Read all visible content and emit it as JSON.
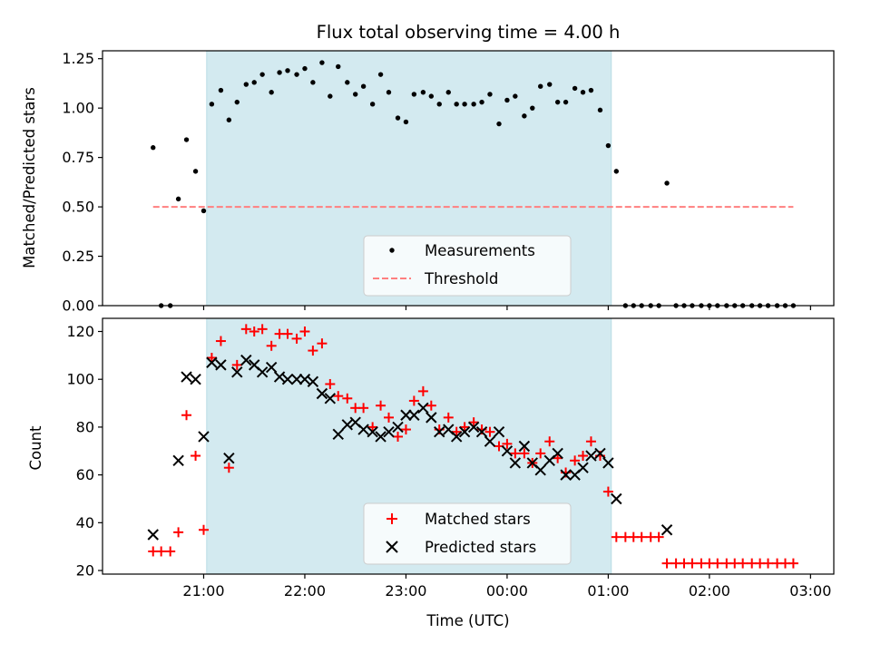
{
  "chart_data": [
    {
      "type": "scatter",
      "title": "Flux total observing time = 4.00 h",
      "ylabel": "Matched/Predicted stars",
      "xlabel": "",
      "xlim": [
        20.0,
        27.23
      ],
      "ylim": [
        0.0,
        1.29
      ],
      "yticks": [
        0.0,
        0.25,
        0.5,
        0.75,
        1.0,
        1.25
      ],
      "ytick_labels": [
        "0.00",
        "0.25",
        "0.50",
        "0.75",
        "1.00",
        "1.25"
      ],
      "shaded_region_x": [
        21.03,
        25.03
      ],
      "shaded_color": "#d3eaf0",
      "threshold": {
        "name": "Threshold",
        "value": 0.5,
        "x": [
          20.5,
          26.83
        ],
        "color": "#ff7f7f"
      },
      "series": [
        {
          "name": "Measurements",
          "color": "#000000",
          "marker": "dot",
          "x": [
            20.5,
            20.58,
            20.67,
            20.75,
            20.83,
            20.92,
            21.0,
            21.08,
            21.17,
            21.25,
            21.33,
            21.42,
            21.5,
            21.58,
            21.67,
            21.75,
            21.83,
            21.92,
            22.0,
            22.08,
            22.17,
            22.25,
            22.33,
            22.42,
            22.5,
            22.58,
            22.67,
            22.75,
            22.83,
            22.92,
            23.0,
            23.08,
            23.17,
            23.25,
            23.33,
            23.42,
            23.5,
            23.58,
            23.67,
            23.75,
            23.83,
            23.92,
            24.0,
            24.08,
            24.17,
            24.25,
            24.33,
            24.42,
            24.5,
            24.58,
            24.67,
            24.75,
            24.83,
            24.92,
            25.0,
            25.08,
            25.17,
            25.25,
            25.33,
            25.42,
            25.5,
            25.58,
            25.67,
            25.75,
            25.83,
            25.92,
            26.0,
            26.08,
            26.17,
            26.25,
            26.33,
            26.42,
            26.5,
            26.58,
            26.67,
            26.75,
            26.83
          ],
          "y": [
            0.8,
            0.0,
            0.0,
            0.54,
            0.84,
            0.68,
            0.48,
            1.02,
            1.09,
            0.94,
            1.03,
            1.12,
            1.13,
            1.17,
            1.08,
            1.18,
            1.19,
            1.17,
            1.2,
            1.13,
            1.23,
            1.06,
            1.21,
            1.13,
            1.07,
            1.11,
            1.02,
            1.17,
            1.08,
            0.95,
            0.93,
            1.07,
            1.08,
            1.06,
            1.02,
            1.08,
            1.02,
            1.02,
            1.02,
            1.03,
            1.07,
            0.92,
            1.04,
            1.06,
            0.96,
            1.0,
            1.11,
            1.12,
            1.03,
            1.03,
            1.1,
            1.08,
            1.09,
            0.99,
            0.81,
            0.68,
            0.0,
            0.0,
            0.0,
            0.0,
            0.0,
            0.62,
            0.0,
            0.0,
            0.0,
            0.0,
            0.0,
            0.0,
            0.0,
            0.0,
            0.0,
            0.0,
            0.0,
            0.0,
            0.0,
            0.0,
            0.0
          ]
        }
      ],
      "legend": {
        "position": "bottom-center",
        "entries": [
          "Measurements",
          "Threshold"
        ]
      }
    },
    {
      "type": "scatter",
      "title": "",
      "ylabel": "Count",
      "xlabel": "Time (UTC)",
      "xlim": [
        20.0,
        27.23
      ],
      "ylim": [
        18.5,
        125.5
      ],
      "yticks": [
        20,
        40,
        60,
        80,
        100,
        120
      ],
      "ytick_labels": [
        "20",
        "40",
        "60",
        "80",
        "100",
        "120"
      ],
      "xticks": [
        21,
        22,
        23,
        24,
        25,
        26,
        27
      ],
      "xtick_labels": [
        "21:00",
        "22:00",
        "23:00",
        "00:00",
        "01:00",
        "02:00",
        "03:00"
      ],
      "shaded_region_x": [
        21.03,
        25.03
      ],
      "series": [
        {
          "name": "Matched stars",
          "color": "#ff0000",
          "marker": "plus",
          "x": [
            20.5,
            20.58,
            20.67,
            20.75,
            20.83,
            20.92,
            21.0,
            21.08,
            21.17,
            21.25,
            21.33,
            21.42,
            21.5,
            21.58,
            21.67,
            21.75,
            21.83,
            21.92,
            22.0,
            22.08,
            22.17,
            22.25,
            22.33,
            22.42,
            22.5,
            22.58,
            22.67,
            22.75,
            22.83,
            22.92,
            23.0,
            23.08,
            23.17,
            23.25,
            23.33,
            23.42,
            23.5,
            23.58,
            23.67,
            23.75,
            23.83,
            23.92,
            24.0,
            24.08,
            24.17,
            24.25,
            24.33,
            24.42,
            24.5,
            24.58,
            24.67,
            24.75,
            24.83,
            24.92,
            25.0,
            25.08,
            25.17,
            25.25,
            25.33,
            25.42,
            25.5,
            25.58,
            25.67,
            25.75,
            25.83,
            25.92,
            26.0,
            26.08,
            26.17,
            26.25,
            26.33,
            26.42,
            26.5,
            26.58,
            26.67,
            26.75,
            26.83
          ],
          "y": [
            28,
            28,
            28,
            36,
            85,
            68,
            37,
            109,
            116,
            63,
            106,
            121,
            120,
            121,
            114,
            119,
            119,
            117,
            120,
            112,
            115,
            98,
            93,
            92,
            88,
            88,
            80,
            89,
            84,
            76,
            79,
            91,
            95,
            89,
            79,
            84,
            78,
            80,
            82,
            79,
            78,
            72,
            73,
            69,
            69,
            65,
            69,
            74,
            67,
            61,
            66,
            68,
            74,
            68,
            53,
            34,
            34,
            34,
            34,
            34,
            34,
            23,
            23,
            23,
            23,
            23,
            23,
            23,
            23,
            23,
            23,
            23,
            23,
            23,
            23,
            23,
            23
          ]
        },
        {
          "name": "Predicted stars",
          "color": "#000000",
          "marker": "x",
          "x": [
            20.5,
            20.75,
            20.83,
            20.92,
            21.0,
            21.08,
            21.17,
            21.25,
            21.33,
            21.42,
            21.5,
            21.58,
            21.67,
            21.75,
            21.83,
            21.92,
            22.0,
            22.08,
            22.17,
            22.25,
            22.33,
            22.42,
            22.5,
            22.58,
            22.67,
            22.75,
            22.83,
            22.92,
            23.0,
            23.08,
            23.17,
            23.25,
            23.33,
            23.42,
            23.5,
            23.58,
            23.67,
            23.75,
            23.83,
            23.92,
            24.0,
            24.08,
            24.17,
            24.25,
            24.33,
            24.42,
            24.5,
            24.58,
            24.67,
            24.75,
            24.83,
            24.92,
            25.0,
            25.08,
            25.58
          ],
          "y": [
            35,
            66,
            101,
            100,
            76,
            107,
            106,
            67,
            103,
            108,
            106,
            103,
            105,
            101,
            100,
            100,
            100,
            99,
            94,
            92,
            77,
            81,
            82,
            79,
            78,
            76,
            78,
            80,
            85,
            85,
            88,
            84,
            78,
            79,
            76,
            78,
            80,
            78,
            74,
            78,
            70,
            65,
            72,
            65,
            62,
            66,
            69,
            60,
            60,
            63,
            68,
            69,
            65,
            50,
            37
          ]
        }
      ],
      "legend": {
        "position": "bottom-center",
        "entries": [
          "Matched stars",
          "Predicted stars"
        ]
      }
    }
  ]
}
